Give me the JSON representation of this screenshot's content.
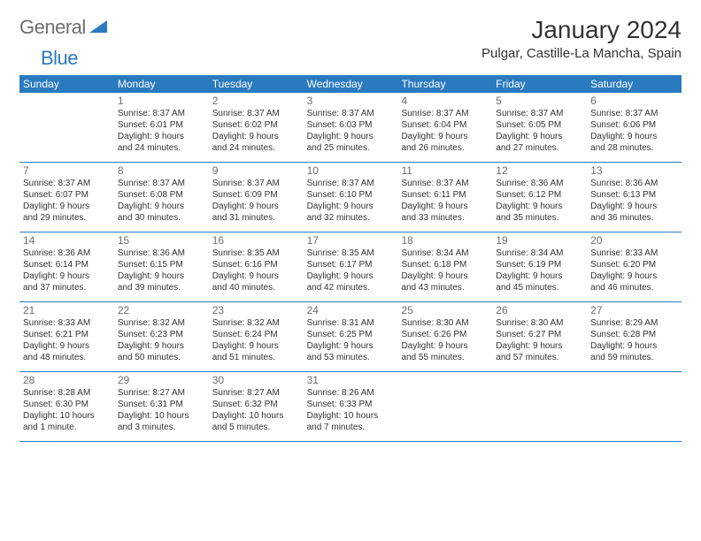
{
  "logo": {
    "text1": "General",
    "text2": "Blue"
  },
  "title": "January 2024",
  "location": "Pulgar, Castille-La Mancha, Spain",
  "colors": {
    "header_bg": "#2a7ac0",
    "header_text": "#ffffff",
    "border": "#2a7ac0",
    "body_text": "#333333",
    "daynum_text": "#6d6d6d",
    "logo_gray": "#6d6d6d",
    "logo_blue": "#2a7ac0",
    "background": "#ffffff"
  },
  "weekdays": [
    "Sunday",
    "Monday",
    "Tuesday",
    "Wednesday",
    "Thursday",
    "Friday",
    "Saturday"
  ],
  "weeks": [
    [
      null,
      {
        "n": "1",
        "sr": "Sunrise: 8:37 AM",
        "ss": "Sunset: 6:01 PM",
        "d1": "Daylight: 9 hours",
        "d2": "and 24 minutes."
      },
      {
        "n": "2",
        "sr": "Sunrise: 8:37 AM",
        "ss": "Sunset: 6:02 PM",
        "d1": "Daylight: 9 hours",
        "d2": "and 24 minutes."
      },
      {
        "n": "3",
        "sr": "Sunrise: 8:37 AM",
        "ss": "Sunset: 6:03 PM",
        "d1": "Daylight: 9 hours",
        "d2": "and 25 minutes."
      },
      {
        "n": "4",
        "sr": "Sunrise: 8:37 AM",
        "ss": "Sunset: 6:04 PM",
        "d1": "Daylight: 9 hours",
        "d2": "and 26 minutes."
      },
      {
        "n": "5",
        "sr": "Sunrise: 8:37 AM",
        "ss": "Sunset: 6:05 PM",
        "d1": "Daylight: 9 hours",
        "d2": "and 27 minutes."
      },
      {
        "n": "6",
        "sr": "Sunrise: 8:37 AM",
        "ss": "Sunset: 6:06 PM",
        "d1": "Daylight: 9 hours",
        "d2": "and 28 minutes."
      }
    ],
    [
      {
        "n": "7",
        "sr": "Sunrise: 8:37 AM",
        "ss": "Sunset: 6:07 PM",
        "d1": "Daylight: 9 hours",
        "d2": "and 29 minutes."
      },
      {
        "n": "8",
        "sr": "Sunrise: 8:37 AM",
        "ss": "Sunset: 6:08 PM",
        "d1": "Daylight: 9 hours",
        "d2": "and 30 minutes."
      },
      {
        "n": "9",
        "sr": "Sunrise: 8:37 AM",
        "ss": "Sunset: 6:09 PM",
        "d1": "Daylight: 9 hours",
        "d2": "and 31 minutes."
      },
      {
        "n": "10",
        "sr": "Sunrise: 8:37 AM",
        "ss": "Sunset: 6:10 PM",
        "d1": "Daylight: 9 hours",
        "d2": "and 32 minutes."
      },
      {
        "n": "11",
        "sr": "Sunrise: 8:37 AM",
        "ss": "Sunset: 6:11 PM",
        "d1": "Daylight: 9 hours",
        "d2": "and 33 minutes."
      },
      {
        "n": "12",
        "sr": "Sunrise: 8:36 AM",
        "ss": "Sunset: 6:12 PM",
        "d1": "Daylight: 9 hours",
        "d2": "and 35 minutes."
      },
      {
        "n": "13",
        "sr": "Sunrise: 8:36 AM",
        "ss": "Sunset: 6:13 PM",
        "d1": "Daylight: 9 hours",
        "d2": "and 36 minutes."
      }
    ],
    [
      {
        "n": "14",
        "sr": "Sunrise: 8:36 AM",
        "ss": "Sunset: 6:14 PM",
        "d1": "Daylight: 9 hours",
        "d2": "and 37 minutes."
      },
      {
        "n": "15",
        "sr": "Sunrise: 8:36 AM",
        "ss": "Sunset: 6:15 PM",
        "d1": "Daylight: 9 hours",
        "d2": "and 39 minutes."
      },
      {
        "n": "16",
        "sr": "Sunrise: 8:35 AM",
        "ss": "Sunset: 6:16 PM",
        "d1": "Daylight: 9 hours",
        "d2": "and 40 minutes."
      },
      {
        "n": "17",
        "sr": "Sunrise: 8:35 AM",
        "ss": "Sunset: 6:17 PM",
        "d1": "Daylight: 9 hours",
        "d2": "and 42 minutes."
      },
      {
        "n": "18",
        "sr": "Sunrise: 8:34 AM",
        "ss": "Sunset: 6:18 PM",
        "d1": "Daylight: 9 hours",
        "d2": "and 43 minutes."
      },
      {
        "n": "19",
        "sr": "Sunrise: 8:34 AM",
        "ss": "Sunset: 6:19 PM",
        "d1": "Daylight: 9 hours",
        "d2": "and 45 minutes."
      },
      {
        "n": "20",
        "sr": "Sunrise: 8:33 AM",
        "ss": "Sunset: 6:20 PM",
        "d1": "Daylight: 9 hours",
        "d2": "and 46 minutes."
      }
    ],
    [
      {
        "n": "21",
        "sr": "Sunrise: 8:33 AM",
        "ss": "Sunset: 6:21 PM",
        "d1": "Daylight: 9 hours",
        "d2": "and 48 minutes."
      },
      {
        "n": "22",
        "sr": "Sunrise: 8:32 AM",
        "ss": "Sunset: 6:23 PM",
        "d1": "Daylight: 9 hours",
        "d2": "and 50 minutes."
      },
      {
        "n": "23",
        "sr": "Sunrise: 8:32 AM",
        "ss": "Sunset: 6:24 PM",
        "d1": "Daylight: 9 hours",
        "d2": "and 51 minutes."
      },
      {
        "n": "24",
        "sr": "Sunrise: 8:31 AM",
        "ss": "Sunset: 6:25 PM",
        "d1": "Daylight: 9 hours",
        "d2": "and 53 minutes."
      },
      {
        "n": "25",
        "sr": "Sunrise: 8:30 AM",
        "ss": "Sunset: 6:26 PM",
        "d1": "Daylight: 9 hours",
        "d2": "and 55 minutes."
      },
      {
        "n": "26",
        "sr": "Sunrise: 8:30 AM",
        "ss": "Sunset: 6:27 PM",
        "d1": "Daylight: 9 hours",
        "d2": "and 57 minutes."
      },
      {
        "n": "27",
        "sr": "Sunrise: 8:29 AM",
        "ss": "Sunset: 6:28 PM",
        "d1": "Daylight: 9 hours",
        "d2": "and 59 minutes."
      }
    ],
    [
      {
        "n": "28",
        "sr": "Sunrise: 8:28 AM",
        "ss": "Sunset: 6:30 PM",
        "d1": "Daylight: 10 hours",
        "d2": "and 1 minute."
      },
      {
        "n": "29",
        "sr": "Sunrise: 8:27 AM",
        "ss": "Sunset: 6:31 PM",
        "d1": "Daylight: 10 hours",
        "d2": "and 3 minutes."
      },
      {
        "n": "30",
        "sr": "Sunrise: 8:27 AM",
        "ss": "Sunset: 6:32 PM",
        "d1": "Daylight: 10 hours",
        "d2": "and 5 minutes."
      },
      {
        "n": "31",
        "sr": "Sunrise: 8:26 AM",
        "ss": "Sunset: 6:33 PM",
        "d1": "Daylight: 10 hours",
        "d2": "and 7 minutes."
      },
      null,
      null,
      null
    ]
  ]
}
